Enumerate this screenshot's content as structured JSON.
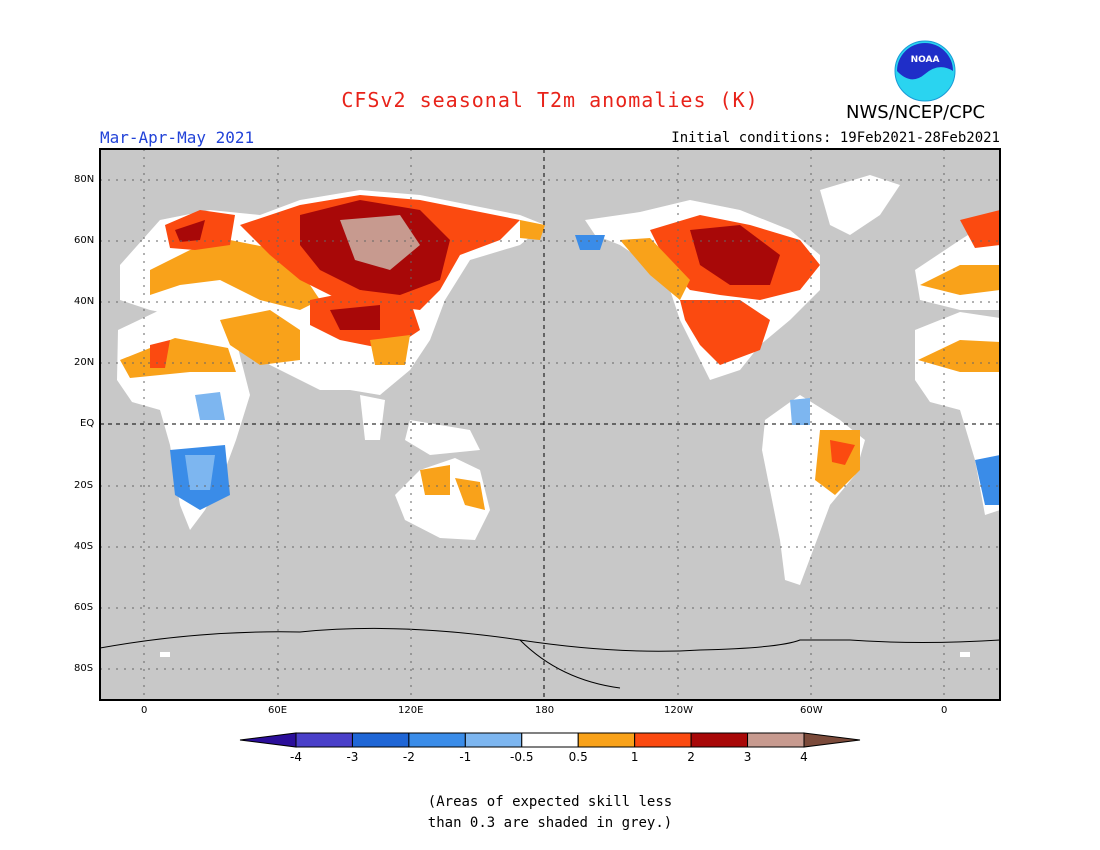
{
  "header": {
    "title": "CFSv2 seasonal T2m anomalies (K)",
    "season": "Mar-Apr-May 2021",
    "initial_conditions": "Initial conditions: 19Feb2021-28Feb2021",
    "agency": "NWS/NCEP/CPC",
    "logo_text": "NOAA"
  },
  "axes": {
    "lat_labels": [
      "80N",
      "60N",
      "40N",
      "20N",
      "EQ",
      "20S",
      "40S",
      "60S",
      "80S"
    ],
    "lon_labels": [
      "0",
      "60E",
      "120E",
      "180",
      "120W",
      "60W",
      "0"
    ]
  },
  "colorbar": {
    "labels": [
      "-4",
      "-3",
      "-2",
      "-1",
      "-0.5",
      "0.5",
      "1",
      "2",
      "3",
      "4"
    ],
    "colors": [
      "#2b0e9a",
      "#4a3fc9",
      "#1f66d6",
      "#3a8ce8",
      "#7db6f0",
      "#ffffff",
      "#f9a21a",
      "#fb4a10",
      "#a80808",
      "#c79a8f",
      "#7b4a3a"
    ]
  },
  "colors": {
    "land_grey": "#c8c8c8",
    "frame": "#000000"
  },
  "footnote": {
    "line1": "(Areas of expected skill less",
    "line2": "than 0.3 are shaded in grey.)"
  }
}
